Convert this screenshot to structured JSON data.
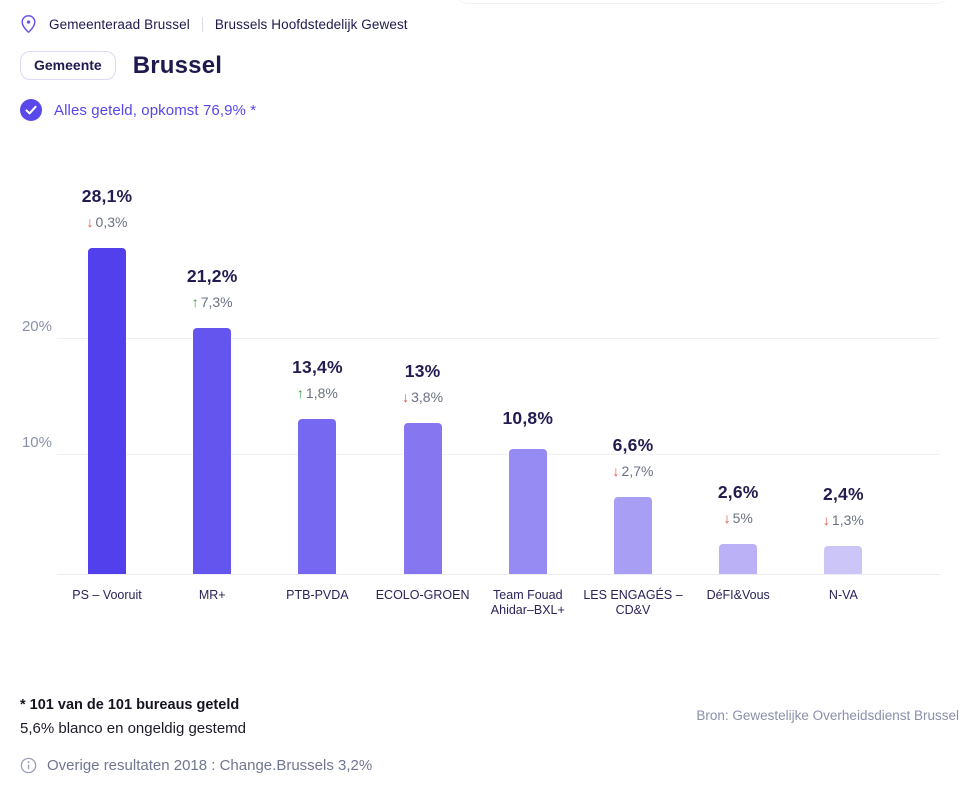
{
  "colors": {
    "accent_purple": "#5746ec",
    "navy_text": "#1e1a4e",
    "change_gray": "#6b7183",
    "down_red": "#e8503f",
    "up_green": "#2f9e44"
  },
  "breadcrumb": {
    "items": [
      "Gemeenteraad Brussel",
      "Brussels Hoofdstedelijk Gewest"
    ]
  },
  "header": {
    "badge": "Gemeente",
    "title": "Brussel"
  },
  "status": {
    "text": "Alles geteld, opkomst 76,9% *"
  },
  "chart_data": {
    "type": "bar",
    "title": "",
    "xlabel": "",
    "ylabel": "",
    "ylim": [
      0,
      35
    ],
    "grid": "horizontal",
    "yticks": [
      "20%",
      "10%"
    ],
    "categories": [
      "PS – Vooruit",
      "MR+",
      "PTB-PVDA",
      "ECOLO-GROEN",
      "Team Fouad Ahidar–BXL+",
      "LES ENGAGÉS – CD&V",
      "DéFI&Vous",
      "N-VA"
    ],
    "category_lines": [
      [
        "PS – Vooruit"
      ],
      [
        "MR+"
      ],
      [
        "PTB-PVDA"
      ],
      [
        "ECOLO-GROEN"
      ],
      [
        "Team Fouad",
        "Ahidar–BXL+"
      ],
      [
        "LES ENGAGÉS –",
        "CD&V"
      ],
      [
        "DéFI&Vous"
      ],
      [
        "N-VA"
      ]
    ],
    "values": [
      28.1,
      21.2,
      13.4,
      13.0,
      10.8,
      6.6,
      2.6,
      2.4
    ],
    "value_labels": [
      "28,1%",
      "21,2%",
      "13,4%",
      "13%",
      "10,8%",
      "6,6%",
      "2,6%",
      "2,4%"
    ],
    "changes": [
      {
        "direction": "down",
        "label": "0,3%"
      },
      {
        "direction": "up",
        "label": "7,3%"
      },
      {
        "direction": "up",
        "label": "1,8%"
      },
      {
        "direction": "down",
        "label": "3,8%"
      },
      null,
      {
        "direction": "down",
        "label": "2,7%"
      },
      {
        "direction": "down",
        "label": "5%"
      },
      {
        "direction": "down",
        "label": "1,3%"
      }
    ],
    "bar_colors": [
      "#5240ec",
      "#6355ee",
      "#7668f0",
      "#8677f1",
      "#968af3",
      "#a89ef4",
      "#bab1f6",
      "#ccc5f8"
    ]
  },
  "footer": {
    "footnote_bold": "* 101 van de 101 bureaus geteld",
    "footnote_normal": "5,6% blanco en ongeldig gestemd",
    "source": "Bron: Gewestelijke Overheidsdienst Brussel",
    "other_results": "Overige resultaten 2018 : Change.Brussels 3,2%"
  }
}
